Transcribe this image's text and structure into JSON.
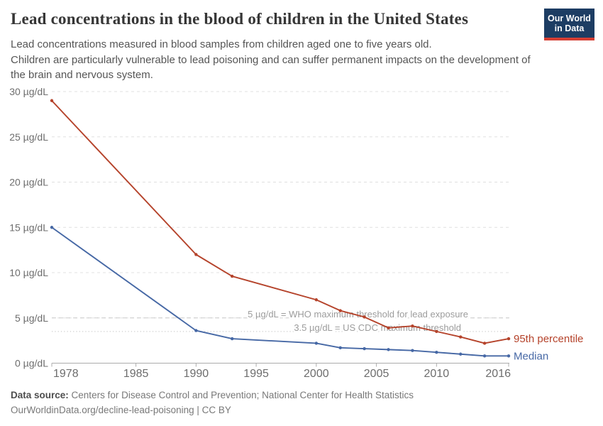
{
  "header": {
    "title": "Lead concentrations in the blood of children in the United States",
    "subtitle": "Lead concentrations measured in blood samples from children aged one to five years old.\nChildren are particularly vulnerable to lead poisoning and can suffer permanent impacts on the development of\nthe brain and nervous system.",
    "logo": {
      "line1": "Our World",
      "line2": "in Data",
      "bg_color": "#1d3d63",
      "bar_color": "#d53e33"
    }
  },
  "chart_data": {
    "type": "line",
    "title": "Lead concentrations in the blood of children in the United States",
    "xlabel": "",
    "ylabel": "",
    "x": [
      1978,
      1990,
      1993,
      2000,
      2002,
      2004,
      2006,
      2008,
      2010,
      2012,
      2014,
      2016
    ],
    "series": [
      {
        "name": "95th percentile",
        "color": "#b5432b",
        "values": [
          29,
          12,
          9.6,
          7.0,
          5.8,
          5.1,
          3.9,
          4.1,
          3.5,
          2.9,
          2.2,
          2.7
        ]
      },
      {
        "name": "Median",
        "color": "#4668a5",
        "values": [
          15,
          3.6,
          2.7,
          2.2,
          1.7,
          1.6,
          1.5,
          1.4,
          1.2,
          1.0,
          0.8,
          0.8
        ]
      }
    ],
    "xlim": [
      1978,
      2016
    ],
    "ylim": [
      0,
      30
    ],
    "xticks": {
      "values": [
        1978,
        1985,
        1990,
        1995,
        2000,
        2005,
        2010,
        2016
      ],
      "labels": [
        "1978",
        "1985",
        "1990",
        "1995",
        "2000",
        "2005",
        "2010",
        "2016"
      ]
    },
    "yticks": {
      "values": [
        0,
        5,
        10,
        15,
        20,
        25,
        30
      ],
      "labels": [
        "0 µg/dL",
        "5 µg/dL",
        "10 µg/dL",
        "15 µg/dL",
        "20 µg/dL",
        "25 µg/dL",
        "30 µg/dL"
      ]
    },
    "grid": "horizontal-dashed",
    "legend_position": "end-of-line",
    "unit": "µg/dL",
    "annotations": [
      {
        "value": 5,
        "text": "5 µg/dL = WHO maximum threshold for lead exposure",
        "line_style": "dashed"
      },
      {
        "value": 3.5,
        "text": "3.5 µg/dL = US CDC maximum threshold",
        "line_style": "dotted"
      }
    ]
  },
  "footer": {
    "source_label": "Data source:",
    "source_text": "Centers for Disease Control and Prevention; National Center for Health Statistics",
    "url_line": "OurWorldinData.org/decline-lead-poisoning | CC BY"
  }
}
